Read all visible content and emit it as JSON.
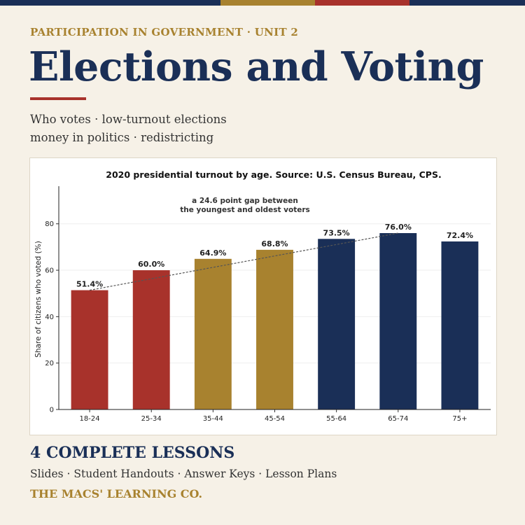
{
  "header": {
    "unit_label": "PARTICIPATION IN GOVERNMENT · UNIT 2",
    "title": "Elections and Voting",
    "subtitle_line1": "Who votes · low-turnout elections",
    "subtitle_line2": "money in politics · redistricting"
  },
  "footer": {
    "lessons": "4 COMPLETE LESSONS",
    "materials": "Slides · Student Handouts · Answer Keys · Lesson Plans",
    "brand": "THE MACS' LEARNING CO."
  },
  "colors": {
    "navy": "#1a2f57",
    "gold": "#a8822f",
    "red": "#a8322b",
    "background": "#f6f1e7"
  },
  "chart_data": {
    "type": "bar",
    "title": "2020 presidential turnout by age. Source: U.S. Census Bureau, CPS.",
    "ylabel": "Share of citizens who voted (%)",
    "xlabel": "",
    "ylim": [
      0,
      95
    ],
    "yticks": [
      0,
      20,
      40,
      60,
      80
    ],
    "categories": [
      "18-24",
      "25-34",
      "35-44",
      "45-54",
      "55-64",
      "65-74",
      "75+"
    ],
    "values": [
      51.4,
      60.0,
      64.9,
      68.8,
      73.5,
      76.0,
      72.4
    ],
    "value_labels": [
      "51.4%",
      "60.0%",
      "64.9%",
      "68.8%",
      "73.5%",
      "76.0%",
      "72.4%"
    ],
    "bar_colors": [
      "#a8322b",
      "#a8322b",
      "#a8822f",
      "#a8822f",
      "#1a2f57",
      "#1a2f57",
      "#1a2f57"
    ],
    "grid": true,
    "annotation": {
      "line1": "a 24.6 point gap between",
      "line2": "the youngest and oldest voters",
      "from_category": "18-24",
      "to_category": "65-74"
    }
  }
}
